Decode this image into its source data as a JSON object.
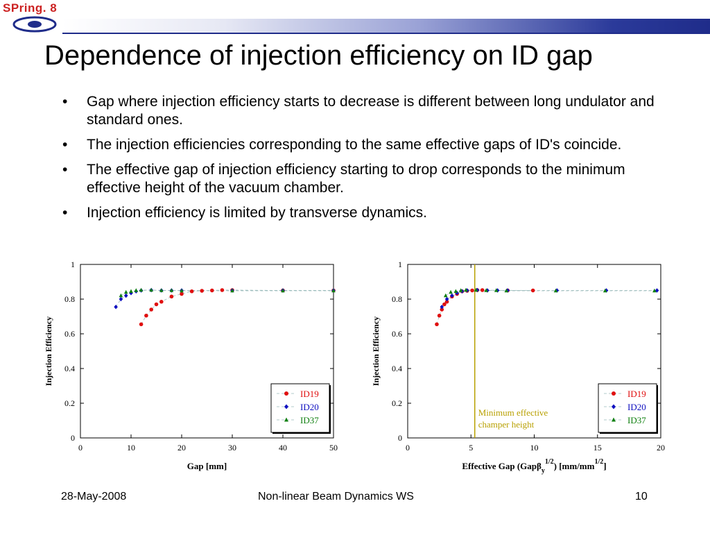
{
  "logo": {
    "text": "SPring. 8"
  },
  "slide": {
    "title": "Dependence of injection efficiency on ID gap",
    "bullets": [
      "Gap where injection efficiency starts to decrease is different between long undulator and standard ones.",
      "The injection efficiencies corresponding to the same effective gaps of ID's coincide.",
      "The effective gap of injection efficiency starting to drop corresponds to the minimum effective height of the vacuum chamber.",
      "Injection efficiency is limited by transverse dynamics."
    ],
    "bullet_symbol": "•"
  },
  "footer": {
    "date": "28-May-2008",
    "event": "Non-linear Beam Dynamics WS",
    "page": "10"
  },
  "colors": {
    "ID19": "#e01010",
    "ID20": "#1010c0",
    "ID37": "#108010",
    "threshold": "#b8a000",
    "header": "#1f2c8a"
  },
  "chart_data": [
    {
      "type": "scatter",
      "xlabel": "Gap [mm]",
      "ylabel": "Injection Efficiency",
      "xlim": [
        0,
        50
      ],
      "ylim": [
        0,
        1
      ],
      "xticks": [
        "0",
        "10",
        "20",
        "30",
        "40",
        "50"
      ],
      "yticks": [
        "0",
        "0.2",
        "0.4",
        "0.6",
        "0.8",
        "1"
      ],
      "legend_position": "bottom-right",
      "series": [
        {
          "name": "ID19",
          "marker": "circle",
          "color": "#e01010",
          "x": [
            12,
            13,
            14,
            15,
            16,
            18,
            20,
            22,
            24,
            26,
            28,
            30,
            40,
            50
          ],
          "y": [
            0.655,
            0.705,
            0.74,
            0.77,
            0.785,
            0.815,
            0.83,
            0.845,
            0.848,
            0.85,
            0.852,
            0.852,
            0.85,
            0.85
          ]
        },
        {
          "name": "ID20",
          "marker": "diamond",
          "color": "#1010c0",
          "x": [
            7,
            8,
            9,
            10,
            11,
            12,
            14,
            16,
            18,
            20,
            30,
            40,
            50
          ],
          "y": [
            0.755,
            0.8,
            0.82,
            0.835,
            0.845,
            0.85,
            0.852,
            0.85,
            0.85,
            0.85,
            0.85,
            0.85,
            0.85
          ]
        },
        {
          "name": "ID37",
          "marker": "triangle",
          "color": "#108010",
          "x": [
            8,
            9,
            10,
            11,
            12,
            14,
            16,
            18,
            20,
            30,
            40,
            50
          ],
          "y": [
            0.82,
            0.84,
            0.845,
            0.85,
            0.852,
            0.852,
            0.85,
            0.85,
            0.848,
            0.848,
            0.848,
            0.848
          ]
        }
      ]
    },
    {
      "type": "scatter",
      "xlabel": "Effective Gap (Gapβ",
      "xlabel_sub": "y",
      "xlabel_sup": "1/2",
      "xlabel_mid": ") [mm/mm",
      "xlabel_sup2": "1/2",
      "xlabel_end": "]",
      "ylabel": "Injection Efficiency",
      "xlim": [
        0,
        20
      ],
      "ylim": [
        0,
        1
      ],
      "xticks": [
        "0",
        "5",
        "10",
        "15",
        "20"
      ],
      "yticks": [
        "0",
        "0.2",
        "0.4",
        "0.6",
        "0.8",
        "1"
      ],
      "legend_position": "bottom-right",
      "vline": {
        "x": 5.3,
        "label_line1": "Minimum effective",
        "label_line2": "champer height"
      },
      "series": [
        {
          "name": "ID19",
          "marker": "circle",
          "color": "#e01010",
          "x": [
            2.3,
            2.5,
            2.7,
            2.9,
            3.1,
            3.5,
            3.9,
            4.3,
            4.7,
            5.1,
            5.5,
            5.9,
            7.9,
            9.9
          ],
          "y": [
            0.655,
            0.705,
            0.74,
            0.77,
            0.785,
            0.815,
            0.83,
            0.845,
            0.848,
            0.85,
            0.852,
            0.852,
            0.85,
            0.85
          ]
        },
        {
          "name": "ID20",
          "marker": "diamond",
          "color": "#1010c0",
          "x": [
            2.7,
            3.1,
            3.5,
            3.9,
            4.3,
            4.7,
            5.5,
            6.3,
            7.1,
            7.9,
            11.8,
            15.7,
            19.7
          ],
          "y": [
            0.755,
            0.8,
            0.82,
            0.835,
            0.845,
            0.85,
            0.852,
            0.85,
            0.85,
            0.85,
            0.85,
            0.85,
            0.85
          ]
        },
        {
          "name": "ID37",
          "marker": "triangle",
          "color": "#108010",
          "x": [
            3.0,
            3.4,
            3.8,
            4.2,
            4.6,
            5.4,
            6.2,
            7.0,
            7.8,
            11.7,
            15.6,
            19.5
          ],
          "y": [
            0.82,
            0.84,
            0.845,
            0.85,
            0.852,
            0.852,
            0.85,
            0.85,
            0.848,
            0.848,
            0.848,
            0.848
          ]
        }
      ]
    }
  ]
}
